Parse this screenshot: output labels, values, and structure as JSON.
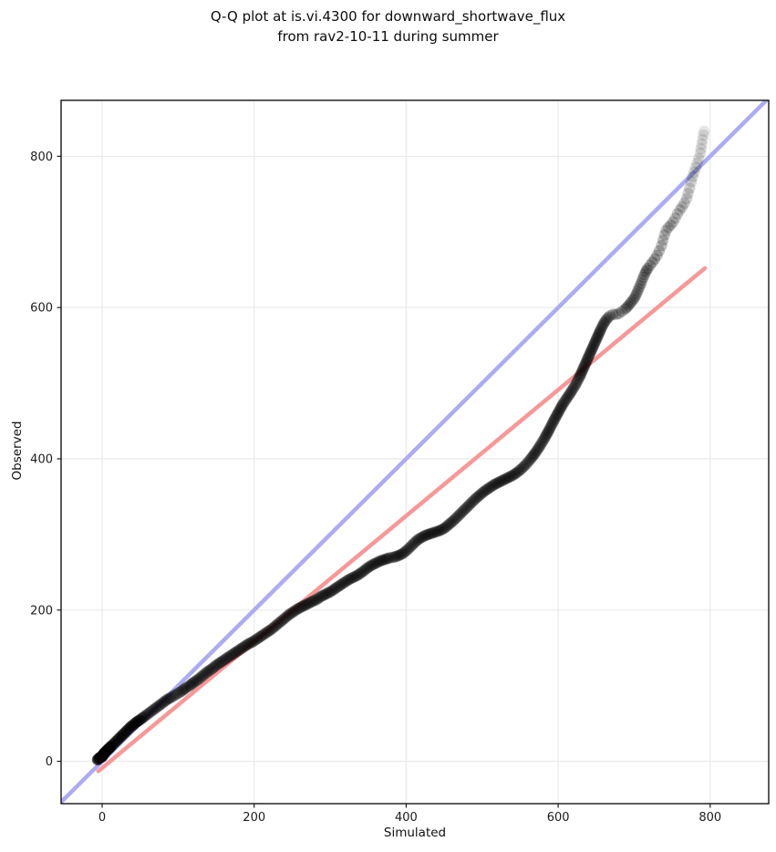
{
  "title": {
    "line1": "Q-Q plot at is.vi.4300 for downward_shortwave_flux",
    "line2": "from rav2-10-11 during summer"
  },
  "chart_data": {
    "type": "scatter",
    "subtype": "qq-plot",
    "title": "Q-Q plot at is.vi.4300 for downward_shortwave_flux from rav2-10-11 during summer",
    "xlabel": "Simulated",
    "ylabel": "Observed",
    "x_ticks": [
      0,
      200,
      400,
      600,
      800
    ],
    "y_ticks": [
      0,
      200,
      400,
      600,
      800
    ],
    "xlim": [
      -54,
      877
    ],
    "ylim": [
      -56,
      874
    ],
    "grid": true,
    "grid_color": "#ebebeb",
    "spine_color": "#000000",
    "identity_line": {
      "name": "identity",
      "color": "#acacf2",
      "from": [
        -54,
        -54
      ],
      "to": [
        876,
        876
      ]
    },
    "fit_line": {
      "name": "fit",
      "color": "#f79898",
      "from": [
        -5,
        -13
      ],
      "to": [
        793,
        652
      ]
    },
    "points_color": "#000000",
    "marker_radius": 6.2,
    "points": [
      [
        -6,
        2
      ],
      [
        -5,
        3
      ],
      [
        -4,
        4
      ],
      [
        -3,
        5
      ],
      [
        -2,
        5
      ],
      [
        -1,
        6
      ],
      [
        0,
        6
      ],
      [
        0,
        7
      ],
      [
        1,
        8
      ],
      [
        2,
        9
      ],
      [
        2,
        10
      ],
      [
        3,
        11
      ],
      [
        4,
        12
      ],
      [
        5,
        13
      ],
      [
        6,
        14
      ],
      [
        7,
        15
      ],
      [
        8,
        16
      ],
      [
        9,
        17
      ],
      [
        10,
        18
      ],
      [
        11,
        19
      ],
      [
        12,
        20
      ],
      [
        14,
        22
      ],
      [
        16,
        24
      ],
      [
        18,
        26
      ],
      [
        20,
        28
      ],
      [
        23,
        31
      ],
      [
        26,
        34
      ],
      [
        29,
        37
      ],
      [
        32,
        40
      ],
      [
        35,
        43
      ],
      [
        38,
        46
      ],
      [
        41,
        48
      ],
      [
        44,
        51
      ],
      [
        47,
        53
      ],
      [
        50,
        55
      ],
      [
        54,
        58
      ],
      [
        58,
        61
      ],
      [
        62,
        64
      ],
      [
        66,
        67
      ],
      [
        70,
        70
      ],
      [
        74,
        73
      ],
      [
        78,
        76
      ],
      [
        82,
        79
      ],
      [
        86,
        82
      ],
      [
        90,
        84
      ],
      [
        95,
        87
      ],
      [
        100,
        90
      ],
      [
        105,
        93
      ],
      [
        110,
        97
      ],
      [
        115,
        100
      ],
      [
        120,
        104
      ],
      [
        126,
        108
      ],
      [
        132,
        113
      ],
      [
        138,
        118
      ],
      [
        144,
        122
      ],
      [
        150,
        127
      ],
      [
        156,
        131
      ],
      [
        162,
        135
      ],
      [
        168,
        139
      ],
      [
        174,
        143
      ],
      [
        180,
        147
      ],
      [
        186,
        151
      ],
      [
        192,
        155
      ],
      [
        198,
        158
      ],
      [
        204,
        162
      ],
      [
        210,
        166
      ],
      [
        216,
        170
      ],
      [
        222,
        174
      ],
      [
        228,
        179
      ],
      [
        234,
        184
      ],
      [
        240,
        189
      ],
      [
        246,
        194
      ],
      [
        252,
        198
      ],
      [
        258,
        202
      ],
      [
        264,
        205
      ],
      [
        270,
        208
      ],
      [
        276,
        211
      ],
      [
        282,
        214
      ],
      [
        288,
        218
      ],
      [
        294,
        221
      ],
      [
        300,
        224
      ],
      [
        306,
        228
      ],
      [
        312,
        232
      ],
      [
        318,
        236
      ],
      [
        324,
        240
      ],
      [
        330,
        243
      ],
      [
        336,
        246
      ],
      [
        342,
        250
      ],
      [
        348,
        255
      ],
      [
        354,
        259
      ],
      [
        360,
        262
      ],
      [
        366,
        265
      ],
      [
        372,
        267
      ],
      [
        378,
        269
      ],
      [
        384,
        270
      ],
      [
        390,
        272
      ],
      [
        396,
        275
      ],
      [
        402,
        280
      ],
      [
        408,
        286
      ],
      [
        414,
        292
      ],
      [
        420,
        296
      ],
      [
        426,
        299
      ],
      [
        432,
        301
      ],
      [
        438,
        303
      ],
      [
        444,
        305
      ],
      [
        450,
        308
      ],
      [
        456,
        313
      ],
      [
        462,
        318
      ],
      [
        468,
        324
      ],
      [
        474,
        330
      ],
      [
        480,
        336
      ],
      [
        486,
        342
      ],
      [
        492,
        348
      ],
      [
        498,
        353
      ],
      [
        504,
        358
      ],
      [
        510,
        362
      ],
      [
        516,
        366
      ],
      [
        522,
        369
      ],
      [
        528,
        372
      ],
      [
        534,
        375
      ],
      [
        540,
        378
      ],
      [
        546,
        382
      ],
      [
        552,
        387
      ],
      [
        558,
        393
      ],
      [
        564,
        400
      ],
      [
        570,
        408
      ],
      [
        576,
        417
      ],
      [
        582,
        427
      ],
      [
        588,
        438
      ],
      [
        594,
        450
      ],
      [
        600,
        461
      ],
      [
        606,
        472
      ],
      [
        612,
        481
      ],
      [
        618,
        490
      ],
      [
        624,
        500
      ],
      [
        628,
        508
      ],
      [
        632,
        517
      ],
      [
        636,
        526
      ],
      [
        640,
        535
      ],
      [
        644,
        544
      ],
      [
        648,
        553
      ],
      [
        652,
        562
      ],
      [
        656,
        571
      ],
      [
        660,
        579
      ],
      [
        664,
        585
      ],
      [
        668,
        589
      ],
      [
        672,
        591
      ],
      [
        676,
        591
      ],
      [
        680,
        592
      ],
      [
        684,
        595
      ],
      [
        688,
        598
      ],
      [
        692,
        602
      ],
      [
        696,
        607
      ],
      [
        700,
        612
      ],
      [
        703,
        618
      ],
      [
        706,
        625
      ],
      [
        709,
        632
      ],
      [
        712,
        640
      ],
      [
        715,
        647
      ],
      [
        718,
        652
      ],
      [
        721,
        656
      ],
      [
        724,
        660
      ],
      [
        727,
        664
      ],
      [
        730,
        669
      ],
      [
        733,
        675
      ],
      [
        736,
        682
      ],
      [
        738,
        689
      ],
      [
        740,
        696
      ],
      [
        742,
        702
      ],
      [
        745,
        706
      ],
      [
        748,
        709
      ],
      [
        751,
        713
      ],
      [
        754,
        718
      ],
      [
        757,
        724
      ],
      [
        760,
        729
      ],
      [
        763,
        733
      ],
      [
        766,
        738
      ],
      [
        769,
        744
      ],
      [
        771,
        751
      ],
      [
        773,
        758
      ],
      [
        775,
        766
      ],
      [
        777,
        773
      ],
      [
        779,
        779
      ],
      [
        781,
        785
      ],
      [
        783,
        791
      ],
      [
        785,
        797
      ],
      [
        787,
        804
      ],
      [
        788,
        810
      ],
      [
        789,
        816
      ],
      [
        790,
        822
      ],
      [
        791,
        828
      ],
      [
        792,
        833
      ]
    ]
  }
}
